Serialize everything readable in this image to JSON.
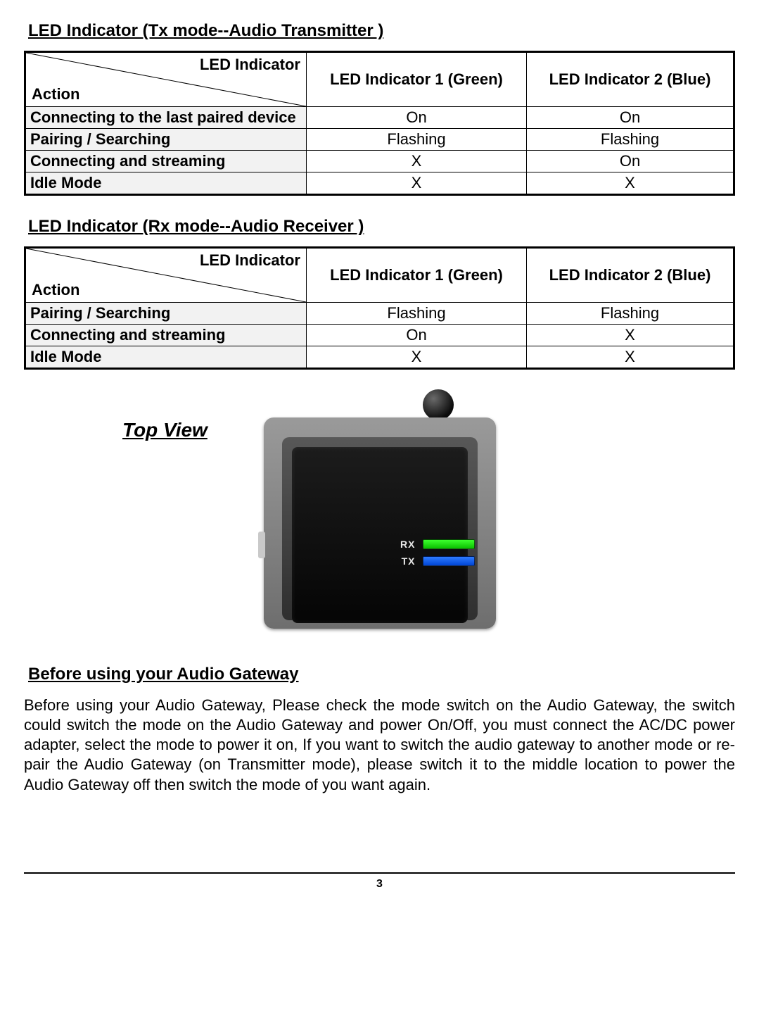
{
  "section_tx": {
    "title": "LED Indicator (Tx mode--Audio Transmitter )",
    "header_top": "LED Indicator",
    "header_bottom": "Action",
    "col1": "LED Indicator 1 (Green)",
    "col2": "LED Indicator 2 (Blue)",
    "rows": [
      {
        "label": "Connecting to the last paired device",
        "c1": "On",
        "c2": "On"
      },
      {
        "label": "Pairing / Searching",
        "c1": "Flashing",
        "c2": "Flashing"
      },
      {
        "label": "Connecting and streaming",
        "c1": "X",
        "c2": "On"
      },
      {
        "label": "Idle Mode",
        "c1": "X",
        "c2": "X"
      }
    ]
  },
  "section_rx": {
    "title": "LED Indicator (Rx mode--Audio Receiver )",
    "header_top": "LED Indicator",
    "header_bottom": "Action",
    "col1": "LED Indicator 1 (Green)",
    "col2": "LED Indicator 2 (Blue)",
    "rows": [
      {
        "label": "Pairing / Searching",
        "c1": "Flashing",
        "c2": "Flashing"
      },
      {
        "label": "Connecting and streaming",
        "c1": "On",
        "c2": "X"
      },
      {
        "label": "Idle Mode",
        "c1": "X",
        "c2": "X"
      }
    ]
  },
  "figure": {
    "caption": "Top View",
    "rx_label": "RX",
    "tx_label": "TX",
    "led_green": "#1fd600",
    "led_blue": "#1a5cff",
    "body_color": "#111111"
  },
  "before": {
    "title": "Before using your Audio Gateway",
    "text": "Before using your Audio Gateway, Please check the mode switch on the Audio Gateway, the switch could switch the mode on the Audio Gateway and power On/Off, you must connect the AC/DC power adapter, select the mode to power it on, If you want to switch the audio gateway to another mode or re-pair the Audio Gateway (on Transmitter mode), please switch it to the middle location to power the Audio Gateway off then switch the mode of you want again."
  },
  "page_number": "3",
  "style": {
    "heading_fontsize": 24,
    "cell_fontsize": 22,
    "body_fontsize": 22,
    "row_header_bg": "#f2f2f2",
    "border_color": "#000000"
  }
}
